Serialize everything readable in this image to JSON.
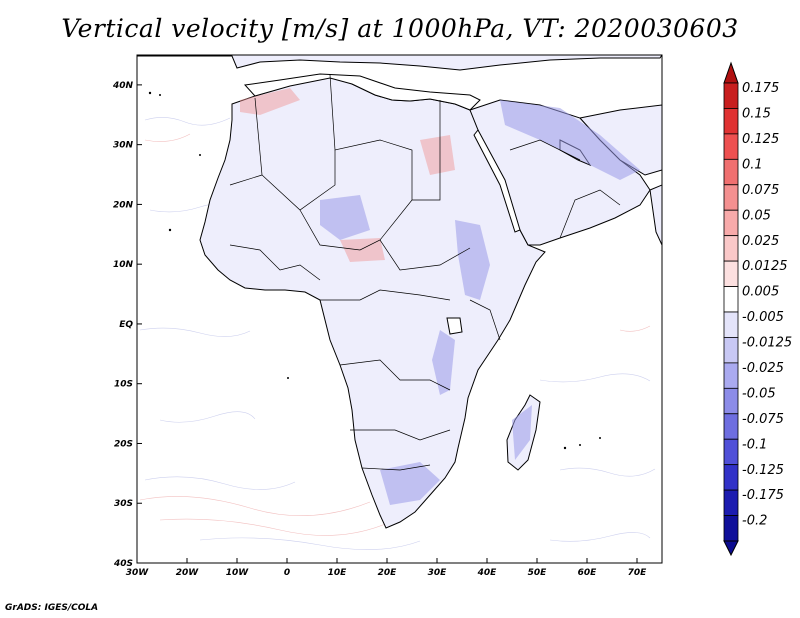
{
  "title": "Vertical velocity [m/s] at 1000hPa, VT: 2020030603",
  "footer": "GrADS: IGES/COLA",
  "map": {
    "lon_range": [
      -30,
      75
    ],
    "lat_range": [
      -40,
      45
    ],
    "lon_ticks": [
      "30W",
      "20W",
      "10W",
      "0",
      "10E",
      "20E",
      "30E",
      "40E",
      "50E",
      "60E",
      "70E"
    ],
    "lat_ticks": [
      "40S",
      "30S",
      "20S",
      "10S",
      "EQ",
      "10N",
      "20N",
      "30N",
      "40N"
    ]
  },
  "colorbar": {
    "levels": [
      "0.175",
      "0.15",
      "0.125",
      "0.1",
      "0.075",
      "0.05",
      "0.025",
      "0.0125",
      "0.005",
      "-0.005",
      "-0.0125",
      "-0.025",
      "-0.05",
      "-0.075",
      "-0.1",
      "-0.125",
      "-0.175",
      "-0.2"
    ],
    "colors": [
      "#c81e1e",
      "#e03232",
      "#ee5050",
      "#f07070",
      "#f49090",
      "#f8aaaa",
      "#fac8c8",
      "#fce0e0",
      "#ffffff",
      "#e4e4fa",
      "#c8c8f4",
      "#aaaaf0",
      "#8c8ce8",
      "#6e6ee0",
      "#5050d8",
      "#3232c8",
      "#1c1cb0",
      "#10109a"
    ],
    "top_color": "#b01010",
    "bottom_color": "#0c0c90"
  }
}
